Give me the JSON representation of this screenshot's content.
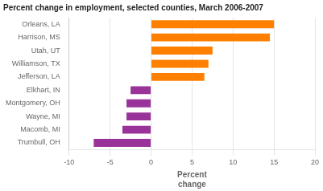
{
  "chart_data": {
    "type": "bar",
    "orientation": "horizontal",
    "title": "Percent change in employment, selected counties, March 2006-2007",
    "categories": [
      "Trumbull, OH",
      "Macomb, MI",
      "Wayne, MI",
      "Montgomery, OH",
      "Elkhart, IN",
      "Jefferson, LA",
      "Williamson, TX",
      "Utah, UT",
      "Harrison, MS",
      "Orleans, LA"
    ],
    "values": [
      -7.0,
      -3.5,
      -3.0,
      -3.0,
      -2.5,
      6.5,
      7.0,
      7.5,
      14.5,
      15.0
    ],
    "colors": [
      "#993399",
      "#993399",
      "#993399",
      "#993399",
      "#993399",
      "#FF8000",
      "#FF8000",
      "#FF8000",
      "#FF8000",
      "#FF8000"
    ],
    "xlim": [
      -10,
      20
    ],
    "xticks": [
      -10,
      -5,
      0,
      5,
      10,
      15,
      20
    ],
    "xlabel": "Percent\nchange",
    "grid": true
  }
}
